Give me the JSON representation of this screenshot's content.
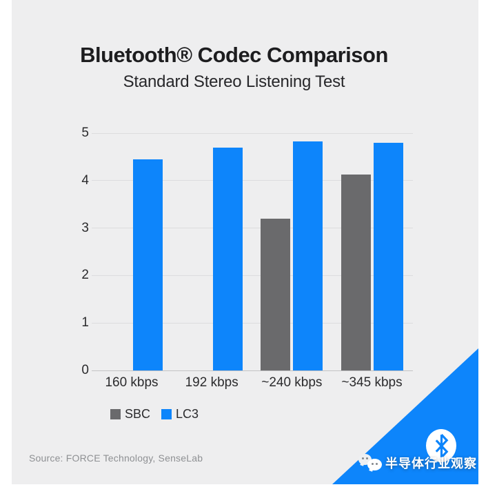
{
  "chart_data": {
    "type": "bar",
    "title": "Bluetooth® Codec Comparison",
    "subtitle": "Standard Stereo Listening Test",
    "categories": [
      "160 kbps",
      "192 kbps",
      "~240 kbps",
      "~345 kbps"
    ],
    "series": [
      {
        "name": "SBC",
        "color": "#6a6a6c",
        "values": [
          null,
          null,
          3.2,
          4.13
        ]
      },
      {
        "name": "LC3",
        "color": "#0d85fb",
        "values": [
          4.45,
          4.7,
          4.82,
          4.79
        ]
      }
    ],
    "xlabel": "",
    "ylabel": "",
    "ylim": [
      0,
      5
    ],
    "yticks": [
      0,
      1,
      2,
      3,
      4,
      5
    ],
    "grid": true,
    "legend_position": "bottom-left"
  },
  "footer": {
    "source": "Source: FORCE Technology, SenseLab",
    "watermark": "半导体行业观察"
  },
  "icons": {
    "brand_badge": "bluetooth-logo",
    "watermark_icon": "wechat"
  },
  "colors": {
    "accent_blue": "#0d85fb",
    "bar_gray": "#6a6a6c",
    "card_background": "#eeeeef",
    "page_background": "#ffffff"
  }
}
